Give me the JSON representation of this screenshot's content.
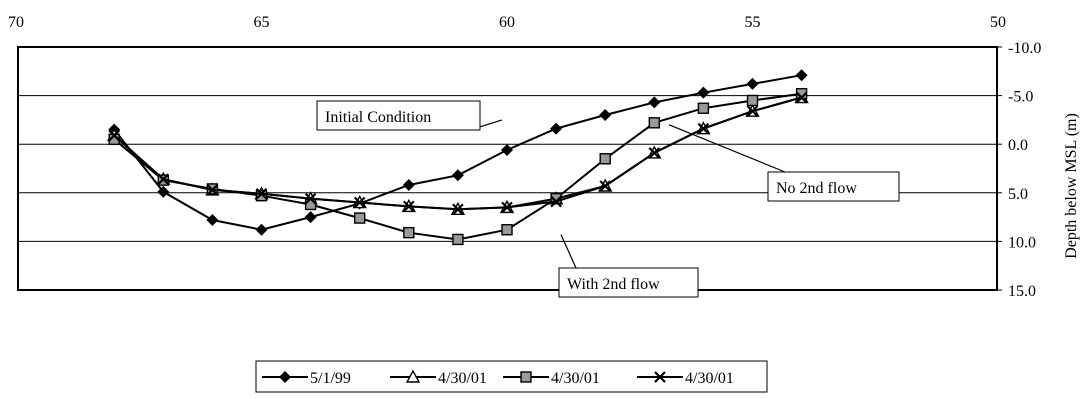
{
  "chart_data": {
    "type": "line",
    "title": "",
    "xlabel": "",
    "ylabel": "Depth below MSL (m)",
    "xlim": [
      70,
      50
    ],
    "x_reversed": true,
    "x_ticks": [
      70,
      65,
      60,
      55,
      50
    ],
    "x_tick_labels": [
      "70",
      "65",
      "60",
      "55",
      "50"
    ],
    "ylim": [
      -10,
      15
    ],
    "y_reversed": true,
    "y_ticks": [
      -10,
      -5,
      0,
      5,
      10,
      15
    ],
    "y_tick_labels": [
      "-10.0",
      "-5.0",
      "0.0",
      "5.0",
      "10.0",
      "15.0"
    ],
    "grid": "horizontal",
    "legend_position": "bottom-center",
    "series": [
      {
        "name": "5/1/99",
        "marker": "diamond",
        "x": [
          68,
          67,
          66,
          65,
          64,
          63,
          62,
          61,
          60,
          59,
          58,
          57,
          56,
          55,
          54
        ],
        "y": [
          -1.5,
          4.9,
          7.8,
          8.8,
          7.5,
          6.1,
          4.2,
          3.2,
          0.6,
          -1.6,
          -3.0,
          -4.3,
          -5.3,
          -6.2,
          -7.1
        ]
      },
      {
        "name": "4/30/01",
        "marker": "triangle",
        "x": [
          68,
          67,
          66,
          65,
          64,
          63,
          62,
          61,
          60,
          59,
          58,
          57,
          56,
          55,
          54
        ],
        "y": [
          -0.9,
          3.6,
          4.7,
          5.1,
          5.6,
          6.0,
          6.4,
          6.7,
          6.5,
          5.6,
          4.3,
          0.9,
          -1.6,
          -3.4,
          -4.8
        ]
      },
      {
        "name": "4/30/01",
        "marker": "square",
        "x": [
          68,
          67,
          66,
          65,
          64,
          63,
          62,
          61,
          60,
          59,
          58,
          57,
          56,
          55,
          54
        ],
        "y": [
          -0.5,
          3.7,
          4.6,
          5.3,
          6.2,
          7.6,
          9.1,
          9.8,
          8.8,
          5.6,
          1.5,
          -2.2,
          -3.7,
          -4.5,
          -5.2
        ]
      },
      {
        "name": "4/30/01",
        "marker": "x",
        "x": [
          68,
          67,
          66,
          65,
          64,
          63,
          62,
          61,
          60,
          59,
          58,
          57,
          56,
          55,
          54
        ],
        "y": [
          -0.9,
          3.6,
          4.7,
          5.1,
          5.6,
          6.0,
          6.4,
          6.7,
          6.5,
          5.9,
          4.3,
          0.9,
          -1.6,
          -3.4,
          -4.8
        ]
      }
    ],
    "annotations": [
      {
        "text": "Initial Condition",
        "x": 60.1,
        "y": -2.5
      },
      {
        "text": "No 2nd flow",
        "x": 56.7,
        "y": -2.0
      },
      {
        "text": "With 2nd flow",
        "x": 58.9,
        "y": 9.3
      }
    ]
  }
}
